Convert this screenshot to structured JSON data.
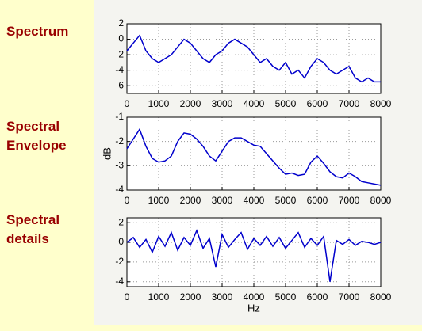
{
  "chart_data": [
    {
      "type": "line",
      "title": "Spectrum",
      "x": [
        0,
        200,
        400,
        600,
        800,
        1000,
        1200,
        1400,
        1600,
        1800,
        2000,
        2200,
        2400,
        2600,
        2800,
        3000,
        3200,
        3400,
        3600,
        3800,
        4000,
        4200,
        4400,
        4600,
        4800,
        5000,
        5200,
        5400,
        5600,
        5800,
        6000,
        6200,
        6400,
        6600,
        6800,
        7000,
        7200,
        7400,
        7600,
        7800,
        8000
      ],
      "series": [
        {
          "color": "#0000cc",
          "values": [
            -1.5,
            -0.5,
            0.5,
            -1.5,
            -2.5,
            -3,
            -2.5,
            -2,
            -1,
            0,
            -0.5,
            -1.5,
            -2.5,
            -3,
            -2,
            -1.5,
            -0.5,
            0,
            -0.5,
            -1,
            -2,
            -3,
            -2.5,
            -3.5,
            -4,
            -3,
            -4.5,
            -4,
            -5,
            -3.5,
            -2.5,
            -3,
            -4,
            -4.5,
            -4,
            -3.5,
            -5,
            -5.5,
            -5,
            -5.5,
            -5.5
          ]
        }
      ],
      "xlim": [
        0,
        8000
      ],
      "xticks": [
        0,
        1000,
        2000,
        3000,
        4000,
        5000,
        6000,
        7000,
        8000
      ],
      "ylim": [
        -7,
        2
      ],
      "yticks": [
        2,
        0,
        -2,
        -4,
        -6
      ],
      "grid": true
    },
    {
      "type": "line",
      "title": "Spectral Envelope",
      "y_label": "dB",
      "x": [
        0,
        200,
        400,
        600,
        800,
        1000,
        1200,
        1400,
        1600,
        1800,
        2000,
        2200,
        2400,
        2600,
        2800,
        3000,
        3200,
        3400,
        3600,
        3800,
        4000,
        4200,
        4400,
        4600,
        4800,
        5000,
        5200,
        5400,
        5600,
        5800,
        6000,
        6200,
        6400,
        6600,
        6800,
        7000,
        7200,
        7400,
        7600,
        7800,
        8000
      ],
      "series": [
        {
          "color": "#0000cc",
          "values": [
            -2.3,
            -1.9,
            -1.5,
            -2.2,
            -2.7,
            -2.85,
            -2.8,
            -2.6,
            -2.0,
            -1.65,
            -1.7,
            -1.9,
            -2.2,
            -2.6,
            -2.8,
            -2.4,
            -2.0,
            -1.85,
            -1.85,
            -2.0,
            -2.15,
            -2.2,
            -2.5,
            -2.8,
            -3.1,
            -3.35,
            -3.3,
            -3.4,
            -3.35,
            -2.85,
            -2.6,
            -2.9,
            -3.25,
            -3.45,
            -3.5,
            -3.3,
            -3.45,
            -3.65,
            -3.7,
            -3.75,
            -3.8
          ]
        }
      ],
      "xlim": [
        0,
        8000
      ],
      "xticks": [
        0,
        1000,
        2000,
        3000,
        4000,
        5000,
        6000,
        7000,
        8000
      ],
      "ylim": [
        -4,
        -1
      ],
      "yticks": [
        -1,
        -2,
        -3,
        -4
      ],
      "grid": true
    },
    {
      "type": "line",
      "title": "Spectral details",
      "x_label": "Hz",
      "x": [
        0,
        200,
        400,
        600,
        800,
        1000,
        1200,
        1400,
        1600,
        1800,
        2000,
        2200,
        2400,
        2600,
        2800,
        3000,
        3200,
        3400,
        3600,
        3800,
        4000,
        4200,
        4400,
        4600,
        4800,
        5000,
        5200,
        5400,
        5600,
        5800,
        6000,
        6200,
        6400,
        6600,
        6800,
        7000,
        7200,
        7400,
        7600,
        7800,
        8000
      ],
      "series": [
        {
          "color": "#0000cc",
          "values": [
            0,
            0.5,
            -0.5,
            0.3,
            -1,
            0.6,
            -0.4,
            1,
            -0.8,
            0.5,
            -0.3,
            1.2,
            -0.6,
            0.4,
            -2.5,
            0.8,
            -0.5,
            0.3,
            1,
            -0.7,
            0.4,
            -0.3,
            0.6,
            -0.4,
            0.5,
            -0.6,
            0.2,
            1,
            -0.5,
            0.4,
            -0.3,
            0.6,
            -4,
            0.2,
            -0.2,
            0.3,
            -0.3,
            0.1,
            0,
            -0.2,
            0
          ]
        }
      ],
      "xlim": [
        0,
        8000
      ],
      "xticks": [
        0,
        1000,
        2000,
        3000,
        4000,
        5000,
        6000,
        7000,
        8000
      ],
      "ylim": [
        -4.5,
        2.5
      ],
      "yticks": [
        2,
        0,
        -2,
        -4
      ],
      "grid": true
    }
  ]
}
